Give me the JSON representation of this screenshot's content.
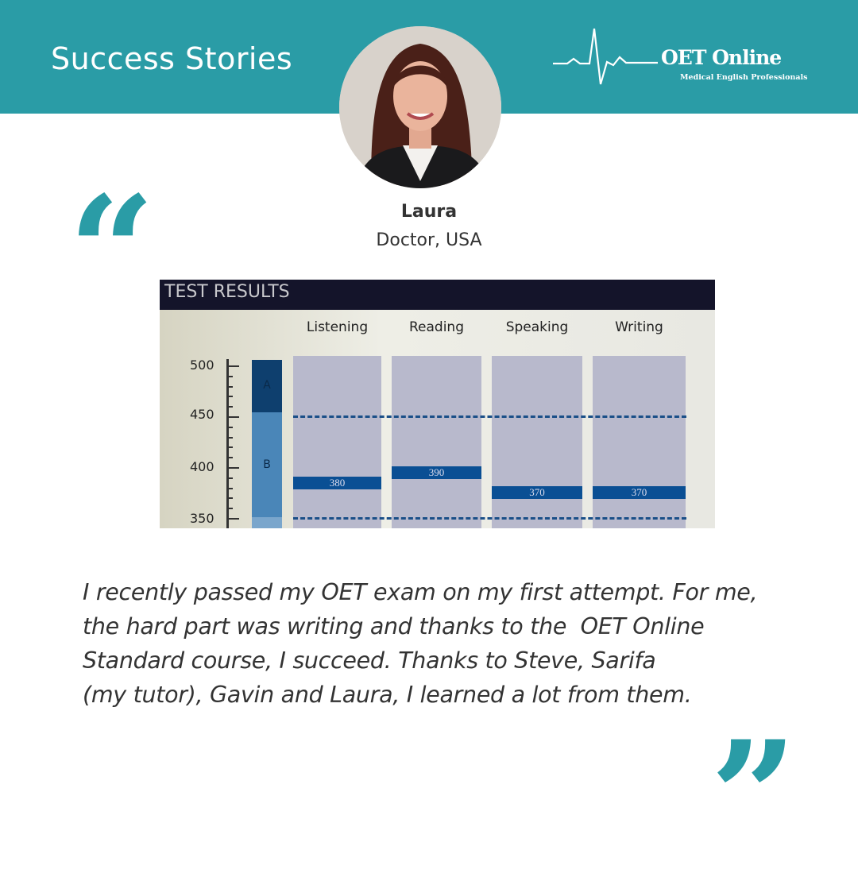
{
  "header": {
    "title": "Success Stories",
    "logo_name": "OET Online",
    "logo_tagline": "Medical English Professionals",
    "accent": "#2a9ca6"
  },
  "person": {
    "name": "Laura",
    "role": "Doctor, USA"
  },
  "test_results": {
    "title": "TEST RESULTS",
    "axis_ticks": [
      "500",
      "450",
      "400",
      "350"
    ],
    "grade_bands": [
      "A",
      "B"
    ],
    "subjects": [
      {
        "label": "Listening",
        "score": 380
      },
      {
        "label": "Reading",
        "score": 390
      },
      {
        "label": "Speaking",
        "score": 370
      },
      {
        "label": "Writing",
        "score": 370
      }
    ],
    "thresholds": [
      450,
      350
    ]
  },
  "testimonial": {
    "lines": [
      "I recently passed my OET exam on my first attempt. For me,",
      "the hard part was writing and thanks to the  OET Online",
      "Standard course, I succeed. Thanks to Steve, Sarifa",
      "(my tutor), Gavin and Laura, I learned a lot from them."
    ]
  },
  "quotes": {
    "open": "“",
    "close": "”"
  }
}
